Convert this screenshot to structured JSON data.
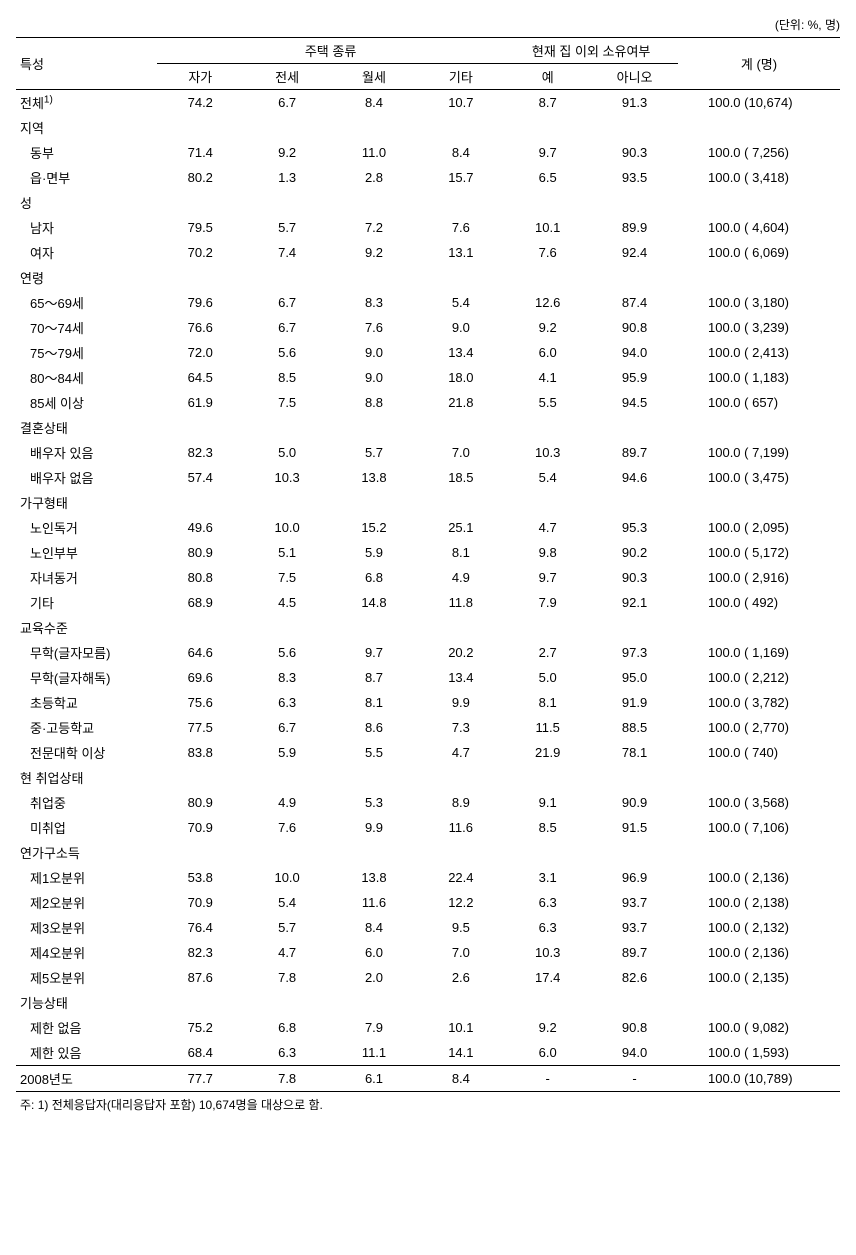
{
  "unit_label": "(단위: %, 명)",
  "headers": {
    "char": "특성",
    "housing_type": "주택 종류",
    "other_own": "현재 집 이외 소유여부",
    "total": "계 (명)",
    "sub": {
      "own": "자가",
      "jeonse": "전세",
      "monthly": "월세",
      "other": "기타",
      "yes": "예",
      "no": "아니오"
    }
  },
  "first_row": {
    "label": "전체",
    "sup": "1)",
    "own": "74.2",
    "jeonse": "6.7",
    "monthly": "8.4",
    "other": "10.7",
    "yes": "8.7",
    "no": "91.3",
    "total": "100.0 (10,674)"
  },
  "groups": [
    {
      "title": "지역",
      "rows": [
        {
          "label": "동부",
          "own": "71.4",
          "jeonse": "9.2",
          "monthly": "11.0",
          "other": "8.4",
          "yes": "9.7",
          "no": "90.3",
          "total": "100.0 ( 7,256)"
        },
        {
          "label": "읍·면부",
          "own": "80.2",
          "jeonse": "1.3",
          "monthly": "2.8",
          "other": "15.7",
          "yes": "6.5",
          "no": "93.5",
          "total": "100.0 ( 3,418)"
        }
      ]
    },
    {
      "title": "성",
      "rows": [
        {
          "label": "남자",
          "own": "79.5",
          "jeonse": "5.7",
          "monthly": "7.2",
          "other": "7.6",
          "yes": "10.1",
          "no": "89.9",
          "total": "100.0 ( 4,604)"
        },
        {
          "label": "여자",
          "own": "70.2",
          "jeonse": "7.4",
          "monthly": "9.2",
          "other": "13.1",
          "yes": "7.6",
          "no": "92.4",
          "total": "100.0 ( 6,069)"
        }
      ]
    },
    {
      "title": "연령",
      "rows": [
        {
          "label": "65～69세",
          "own": "79.6",
          "jeonse": "6.7",
          "monthly": "8.3",
          "other": "5.4",
          "yes": "12.6",
          "no": "87.4",
          "total": "100.0 ( 3,180)"
        },
        {
          "label": "70～74세",
          "own": "76.6",
          "jeonse": "6.7",
          "monthly": "7.6",
          "other": "9.0",
          "yes": "9.2",
          "no": "90.8",
          "total": "100.0 ( 3,239)"
        },
        {
          "label": "75～79세",
          "own": "72.0",
          "jeonse": "5.6",
          "monthly": "9.0",
          "other": "13.4",
          "yes": "6.0",
          "no": "94.0",
          "total": "100.0 ( 2,413)"
        },
        {
          "label": "80～84세",
          "own": "64.5",
          "jeonse": "8.5",
          "monthly": "9.0",
          "other": "18.0",
          "yes": "4.1",
          "no": "95.9",
          "total": "100.0 ( 1,183)"
        },
        {
          "label": "85세 이상",
          "own": "61.9",
          "jeonse": "7.5",
          "monthly": "8.8",
          "other": "21.8",
          "yes": "5.5",
          "no": "94.5",
          "total": "100.0 (   657)"
        }
      ]
    },
    {
      "title": "결혼상태",
      "rows": [
        {
          "label": "배우자 있음",
          "own": "82.3",
          "jeonse": "5.0",
          "monthly": "5.7",
          "other": "7.0",
          "yes": "10.3",
          "no": "89.7",
          "total": "100.0 ( 7,199)"
        },
        {
          "label": "배우자 없음",
          "own": "57.4",
          "jeonse": "10.3",
          "monthly": "13.8",
          "other": "18.5",
          "yes": "5.4",
          "no": "94.6",
          "total": "100.0 ( 3,475)"
        }
      ]
    },
    {
      "title": "가구형태",
      "rows": [
        {
          "label": "노인독거",
          "own": "49.6",
          "jeonse": "10.0",
          "monthly": "15.2",
          "other": "25.1",
          "yes": "4.7",
          "no": "95.3",
          "total": "100.0 ( 2,095)"
        },
        {
          "label": "노인부부",
          "own": "80.9",
          "jeonse": "5.1",
          "monthly": "5.9",
          "other": "8.1",
          "yes": "9.8",
          "no": "90.2",
          "total": "100.0 ( 5,172)"
        },
        {
          "label": "자녀동거",
          "own": "80.8",
          "jeonse": "7.5",
          "monthly": "6.8",
          "other": "4.9",
          "yes": "9.7",
          "no": "90.3",
          "total": "100.0 ( 2,916)"
        },
        {
          "label": "기타",
          "own": "68.9",
          "jeonse": "4.5",
          "monthly": "14.8",
          "other": "11.8",
          "yes": "7.9",
          "no": "92.1",
          "total": "100.0 (   492)"
        }
      ]
    },
    {
      "title": "교육수준",
      "rows": [
        {
          "label": "무학(글자모름)",
          "own": "64.6",
          "jeonse": "5.6",
          "monthly": "9.7",
          "other": "20.2",
          "yes": "2.7",
          "no": "97.3",
          "total": "100.0 ( 1,169)"
        },
        {
          "label": "무학(글자해독)",
          "own": "69.6",
          "jeonse": "8.3",
          "monthly": "8.7",
          "other": "13.4",
          "yes": "5.0",
          "no": "95.0",
          "total": "100.0 ( 2,212)"
        },
        {
          "label": "초등학교",
          "own": "75.6",
          "jeonse": "6.3",
          "monthly": "8.1",
          "other": "9.9",
          "yes": "8.1",
          "no": "91.9",
          "total": "100.0 ( 3,782)"
        },
        {
          "label": "중·고등학교",
          "own": "77.5",
          "jeonse": "6.7",
          "monthly": "8.6",
          "other": "7.3",
          "yes": "11.5",
          "no": "88.5",
          "total": "100.0 ( 2,770)"
        },
        {
          "label": "전문대학 이상",
          "own": "83.8",
          "jeonse": "5.9",
          "monthly": "5.5",
          "other": "4.7",
          "yes": "21.9",
          "no": "78.1",
          "total": "100.0 (   740)"
        }
      ]
    },
    {
      "title": "현 취업상태",
      "rows": [
        {
          "label": "취업중",
          "own": "80.9",
          "jeonse": "4.9",
          "monthly": "5.3",
          "other": "8.9",
          "yes": "9.1",
          "no": "90.9",
          "total": "100.0 ( 3,568)"
        },
        {
          "label": "미취업",
          "own": "70.9",
          "jeonse": "7.6",
          "monthly": "9.9",
          "other": "11.6",
          "yes": "8.5",
          "no": "91.5",
          "total": "100.0 ( 7,106)"
        }
      ]
    },
    {
      "title": "연가구소득",
      "rows": [
        {
          "label": "제1오분위",
          "own": "53.8",
          "jeonse": "10.0",
          "monthly": "13.8",
          "other": "22.4",
          "yes": "3.1",
          "no": "96.9",
          "total": "100.0 ( 2,136)"
        },
        {
          "label": "제2오분위",
          "own": "70.9",
          "jeonse": "5.4",
          "monthly": "11.6",
          "other": "12.2",
          "yes": "6.3",
          "no": "93.7",
          "total": "100.0 ( 2,138)"
        },
        {
          "label": "제3오분위",
          "own": "76.4",
          "jeonse": "5.7",
          "monthly": "8.4",
          "other": "9.5",
          "yes": "6.3",
          "no": "93.7",
          "total": "100.0 ( 2,132)"
        },
        {
          "label": "제4오분위",
          "own": "82.3",
          "jeonse": "4.7",
          "monthly": "6.0",
          "other": "7.0",
          "yes": "10.3",
          "no": "89.7",
          "total": "100.0 ( 2,136)"
        },
        {
          "label": "제5오분위",
          "own": "87.6",
          "jeonse": "7.8",
          "monthly": "2.0",
          "other": "2.6",
          "yes": "17.4",
          "no": "82.6",
          "total": "100.0 ( 2,135)"
        }
      ]
    },
    {
      "title": "기능상태",
      "rows": [
        {
          "label": "제한 없음",
          "own": "75.2",
          "jeonse": "6.8",
          "monthly": "7.9",
          "other": "10.1",
          "yes": "9.2",
          "no": "90.8",
          "total": "100.0 ( 9,082)"
        },
        {
          "label": "제한 있음",
          "own": "68.4",
          "jeonse": "6.3",
          "monthly": "11.1",
          "other": "14.1",
          "yes": "6.0",
          "no": "94.0",
          "total": "100.0 ( 1,593)"
        }
      ]
    }
  ],
  "last_row": {
    "label": "2008년도",
    "own": "77.7",
    "jeonse": "7.8",
    "monthly": "6.1",
    "other": "8.4",
    "yes": "-",
    "no": "-",
    "total": "100.0 (10,789)"
  },
  "footnote": "주: 1) 전체응답자(대리응답자 포함) 10,674명을 대상으로 함."
}
